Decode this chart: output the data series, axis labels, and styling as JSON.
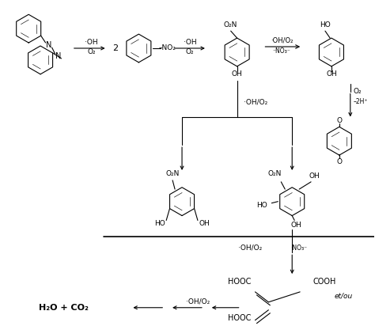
{
  "figsize": [
    4.74,
    4.12
  ],
  "dpi": 100,
  "bg": "#ffffff",
  "lc": "#000000",
  "xlim": [
    0,
    474
  ],
  "ylim": [
    0,
    412
  ]
}
